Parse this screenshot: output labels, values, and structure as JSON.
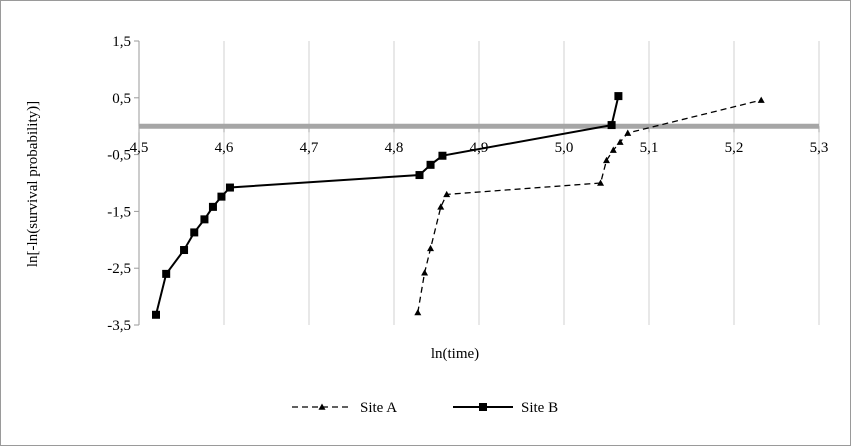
{
  "chart_data": {
    "type": "line",
    "xlabel": "ln(time)",
    "ylabel": "ln[-ln(survival probability)]",
    "xlim": [
      4.5,
      5.3
    ],
    "ylim": [
      -3.5,
      1.5
    ],
    "x_ticks": [
      4.5,
      4.6,
      4.7,
      4.8,
      4.9,
      5.0,
      5.1,
      5.2,
      5.3
    ],
    "x_tick_labels": [
      "4,5",
      "4,6",
      "4,7",
      "4,8",
      "4,9",
      "5,0",
      "5,1",
      "5,2",
      "5,3"
    ],
    "y_ticks": [
      1.5,
      0.5,
      -0.5,
      -1.5,
      -2.5,
      -3.5
    ],
    "y_tick_labels": [
      "1,5",
      "0,5",
      "-0,5",
      "-1,5",
      "-2,5",
      "-3,5"
    ],
    "x_axis_crosses_y": 0,
    "grid": "vertical",
    "legend_position": "bottom",
    "series": [
      {
        "name": "Site A",
        "line_style": "dashed",
        "marker": "triangle",
        "color": "#000000",
        "points": [
          [
            4.828,
            -3.28
          ],
          [
            4.836,
            -2.58
          ],
          [
            4.843,
            -2.15
          ],
          [
            4.855,
            -1.42
          ],
          [
            4.862,
            -1.2
          ],
          [
            5.043,
            -1.0
          ],
          [
            5.05,
            -0.6
          ],
          [
            5.058,
            -0.42
          ],
          [
            5.066,
            -0.28
          ],
          [
            5.075,
            -0.12
          ],
          [
            5.232,
            0.46
          ]
        ]
      },
      {
        "name": "Site B",
        "line_style": "solid",
        "marker": "square",
        "color": "#000000",
        "points": [
          [
            4.52,
            -3.32
          ],
          [
            4.532,
            -2.6
          ],
          [
            4.553,
            -2.18
          ],
          [
            4.565,
            -1.87
          ],
          [
            4.577,
            -1.64
          ],
          [
            4.587,
            -1.42
          ],
          [
            4.597,
            -1.24
          ],
          [
            4.607,
            -1.08
          ],
          [
            4.83,
            -0.86
          ],
          [
            4.843,
            -0.68
          ],
          [
            4.857,
            -0.52
          ],
          [
            5.056,
            0.02
          ],
          [
            5.064,
            0.53
          ]
        ]
      }
    ]
  }
}
